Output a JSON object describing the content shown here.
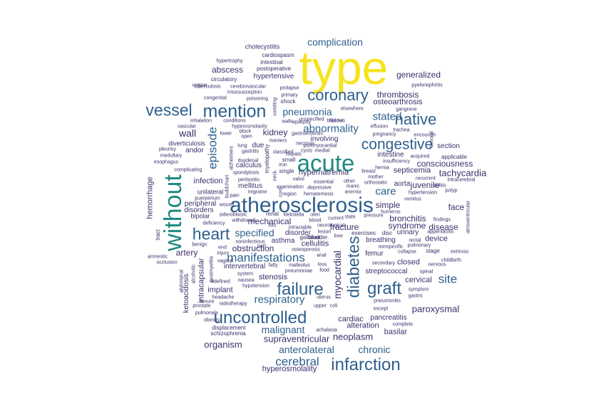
{
  "colors": {
    "yellow": "#f5e31f",
    "teal": "#1f8a82",
    "blue": "#2f5f8d",
    "navy": "#3a2f6b"
  },
  "words": [
    {
      "text": "type"
    },
    {
      "text": "acute"
    },
    {
      "text": "without"
    },
    {
      "text": "atherosclerosis"
    },
    {
      "text": "mention"
    },
    {
      "text": "coronary"
    },
    {
      "text": "vessel"
    },
    {
      "text": "native"
    },
    {
      "text": "congestive"
    },
    {
      "text": "heart"
    },
    {
      "text": "failure"
    },
    {
      "text": "graft"
    },
    {
      "text": "diabetes"
    },
    {
      "text": "uncontrolled"
    },
    {
      "text": "infarction"
    },
    {
      "text": "cerebral"
    },
    {
      "text": "episode"
    },
    {
      "text": "complication"
    },
    {
      "text": "pneumonia"
    },
    {
      "text": "abnormality"
    },
    {
      "text": "stated"
    },
    {
      "text": "care"
    },
    {
      "text": "wall"
    },
    {
      "text": "kidney"
    },
    {
      "text": "generalized"
    },
    {
      "text": "thrombosis"
    },
    {
      "text": "osteoarthrosis"
    },
    {
      "text": "abscess"
    },
    {
      "text": "hypertensive"
    },
    {
      "text": "manifestations"
    },
    {
      "text": "respiratory"
    },
    {
      "text": "specified"
    },
    {
      "text": "malignant"
    },
    {
      "text": "anterolateral"
    },
    {
      "text": "chronic"
    },
    {
      "text": "neoplasm"
    },
    {
      "text": "organism"
    },
    {
      "text": "supraventricular"
    },
    {
      "text": "hyperosmolality"
    },
    {
      "text": "site"
    },
    {
      "text": "paroxysmal"
    },
    {
      "text": "tachycardia"
    },
    {
      "text": "consciousness"
    },
    {
      "text": "juvenile"
    },
    {
      "text": "disease"
    },
    {
      "text": "bronchitis"
    },
    {
      "text": "face"
    },
    {
      "text": "syndrome"
    },
    {
      "text": "simple"
    },
    {
      "text": "fracture"
    },
    {
      "text": "myocardial"
    },
    {
      "text": "mechanical"
    },
    {
      "text": "obstruction"
    },
    {
      "text": "stenosis"
    },
    {
      "text": "implant"
    },
    {
      "text": "infection"
    },
    {
      "text": "hemorrhage"
    },
    {
      "text": "artery"
    },
    {
      "text": "cellulitis"
    },
    {
      "text": "hypernatremia"
    },
    {
      "text": "septicemia"
    },
    {
      "text": "device"
    },
    {
      "text": "closed"
    },
    {
      "text": "cervical"
    },
    {
      "text": "basilar"
    },
    {
      "text": "alteration"
    },
    {
      "text": "cardiac"
    },
    {
      "text": "streptococcal"
    },
    {
      "text": "due"
    },
    {
      "text": "calculus"
    },
    {
      "text": "mellitus"
    },
    {
      "text": "andor"
    },
    {
      "text": "section"
    },
    {
      "text": "urinary"
    },
    {
      "text": "breathing"
    },
    {
      "text": "femur"
    },
    {
      "text": "disorders"
    },
    {
      "text": "peripheral"
    },
    {
      "text": "unilateral"
    },
    {
      "text": "bipolar"
    },
    {
      "text": "intracapsular"
    },
    {
      "text": "intervertebral"
    },
    {
      "text": "pancreatitis"
    },
    {
      "text": "involving"
    },
    {
      "text": "disorder"
    },
    {
      "text": "asthma"
    },
    {
      "text": "intestine"
    },
    {
      "text": "aorta"
    },
    {
      "text": "diverticulosis"
    },
    {
      "text": "cholecystitis"
    },
    {
      "text": "cardiospasm"
    },
    {
      "text": "intestinal"
    },
    {
      "text": "postoperative"
    },
    {
      "text": "hypertrophy"
    },
    {
      "text": "circulatory"
    },
    {
      "text": "tuberculosis"
    },
    {
      "text": "cerebrovascular"
    },
    {
      "text": "intussusception"
    },
    {
      "text": "congenital"
    },
    {
      "text": "poisoning"
    },
    {
      "text": "prolapse"
    },
    {
      "text": "primary"
    },
    {
      "text": "shock"
    },
    {
      "text": "vomiting"
    },
    {
      "text": "pyelonephritis"
    },
    {
      "text": "gangrene"
    },
    {
      "text": "elsewhere"
    },
    {
      "text": "fibrosis"
    },
    {
      "text": "unspecified"
    },
    {
      "text": "effusion"
    },
    {
      "text": "trachea"
    },
    {
      "text": "pregnancy"
    },
    {
      "text": "encounter"
    },
    {
      "text": "femoral"
    },
    {
      "text": "inhalation"
    },
    {
      "text": "conditions"
    },
    {
      "text": "hyperosmolarity"
    },
    {
      "text": "lower"
    },
    {
      "text": "block"
    },
    {
      "text": "open"
    },
    {
      "text": "epilepsy"
    },
    {
      "text": "necrosis"
    },
    {
      "text": "postmyocardial"
    },
    {
      "text": "bladder"
    },
    {
      "text": "gastroenteritis"
    },
    {
      "text": "walls"
    },
    {
      "text": "vascular"
    },
    {
      "text": "corpus"
    },
    {
      "text": "pleurisy"
    },
    {
      "text": "medullary"
    },
    {
      "text": "esophagus"
    },
    {
      "text": "complicating"
    },
    {
      "text": "gastritis"
    },
    {
      "text": "duodenal"
    },
    {
      "text": "lung"
    },
    {
      "text": "alzheimers"
    },
    {
      "text": "myelopathy"
    },
    {
      "text": "meniers"
    },
    {
      "text": "classified"
    },
    {
      "text": "cysts"
    },
    {
      "text": "medial"
    },
    {
      "text": "small"
    },
    {
      "text": "hepatic"
    },
    {
      "text": "single"
    },
    {
      "text": "iron"
    },
    {
      "text": "essential"
    },
    {
      "text": "other"
    },
    {
      "text": "orthostatic"
    },
    {
      "text": "mother"
    },
    {
      "text": "breast"
    },
    {
      "text": "hernia"
    },
    {
      "text": "insufficiency"
    },
    {
      "text": "acquired"
    },
    {
      "text": "applicable"
    },
    {
      "text": "intracerebral"
    },
    {
      "text": "recurrent"
    },
    {
      "text": "colitis"
    },
    {
      "text": "hypertension"
    },
    {
      "text": "polyp"
    },
    {
      "text": "vomitus"
    },
    {
      "text": "humerus"
    },
    {
      "text": "findings"
    },
    {
      "text": "appendicitis"
    },
    {
      "text": "atrioventricular"
    },
    {
      "text": "rectal"
    },
    {
      "text": "pulmonary"
    },
    {
      "text": "stage"
    },
    {
      "text": "extrinsic"
    },
    {
      "text": "nonspecific"
    },
    {
      "text": "collapse"
    },
    {
      "text": "childbirth"
    },
    {
      "text": "nervous"
    },
    {
      "text": "spinal"
    },
    {
      "text": "symptom"
    },
    {
      "text": "gastric"
    },
    {
      "text": "secondary"
    },
    {
      "text": "pneumonitis"
    },
    {
      "text": "except"
    },
    {
      "text": "complete"
    },
    {
      "text": "upper"
    },
    {
      "text": "coli"
    },
    {
      "text": "achalasia"
    },
    {
      "text": "uterus"
    },
    {
      "text": "food"
    },
    {
      "text": "pneumoniae"
    },
    {
      "text": "loss"
    },
    {
      "text": "malleolus"
    },
    {
      "text": "fatty"
    },
    {
      "text": "osteoporosis"
    },
    {
      "text": "anal"
    },
    {
      "text": "part"
    },
    {
      "text": "liver"
    },
    {
      "text": "lesion"
    },
    {
      "text": "exercises"
    },
    {
      "text": "disc"
    },
    {
      "text": "current"
    },
    {
      "text": "state"
    },
    {
      "text": "pressure"
    },
    {
      "text": "intractable"
    },
    {
      "text": "neurological"
    },
    {
      "text": "gallbladder"
    },
    {
      "text": "ulcer"
    },
    {
      "text": "blood"
    },
    {
      "text": "klebsiella"
    },
    {
      "text": "uteri"
    },
    {
      "text": "renal"
    },
    {
      "text": "withdrawal"
    },
    {
      "text": "luts"
    },
    {
      "text": "sideroblastic"
    },
    {
      "text": "deficiency"
    },
    {
      "text": "noninfectious"
    },
    {
      "text": "end"
    },
    {
      "text": "injury"
    },
    {
      "text": "benign"
    },
    {
      "text": "vaginal"
    },
    {
      "text": "system"
    },
    {
      "text": "nausea"
    },
    {
      "text": "illdefined"
    },
    {
      "text": "hypotension"
    },
    {
      "text": "headache"
    },
    {
      "text": "radiotherapy"
    },
    {
      "text": "flexure"
    },
    {
      "text": "prostate"
    },
    {
      "text": "pulmonale"
    },
    {
      "text": "obesity"
    },
    {
      "text": "displacement"
    },
    {
      "text": "schizophrenia"
    },
    {
      "text": "ketoacidosis"
    },
    {
      "text": "abdominal"
    },
    {
      "text": "alcoholic"
    },
    {
      "text": "amnestic"
    },
    {
      "text": "occlusion"
    },
    {
      "text": "tract"
    },
    {
      "text": "postmyelitis"
    },
    {
      "text": "wound"
    },
    {
      "text": "puerperium"
    },
    {
      "text": "pain"
    },
    {
      "text": "buddchiari"
    },
    {
      "text": "migraine"
    },
    {
      "text": "spondylosis"
    },
    {
      "text": "peritonitis"
    },
    {
      "text": "neck"
    },
    {
      "text": "examination"
    },
    {
      "text": "region"
    },
    {
      "text": "hematemesis"
    },
    {
      "text": "depressive"
    },
    {
      "text": "anemia"
    },
    {
      "text": "manic"
    },
    {
      "text": "valve"
    },
    {
      "text": "cord"
    }
  ]
}
